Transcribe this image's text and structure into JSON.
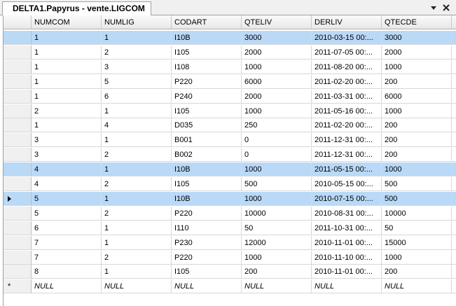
{
  "tab": {
    "title": "DELTA1.Papyrus - vente.LIGCOM"
  },
  "table": {
    "columns": [
      "NUMCOM",
      "NUMLIG",
      "CODART",
      "QTELIV",
      "DERLIV",
      "QTECDE"
    ],
    "rows": [
      {
        "cells": [
          "1",
          "1",
          "I10B",
          "3000",
          "2010-03-15 00:...",
          "3000"
        ],
        "selected": true
      },
      {
        "cells": [
          "1",
          "2",
          "I105",
          "2000",
          "2011-07-05 00:...",
          "2000"
        ]
      },
      {
        "cells": [
          "1",
          "3",
          "I108",
          "1000",
          "2011-08-20 00:...",
          "1000"
        ]
      },
      {
        "cells": [
          "1",
          "5",
          "P220",
          "6000",
          "2011-02-20 00:...",
          "200"
        ]
      },
      {
        "cells": [
          "1",
          "6",
          "P240",
          "2000",
          "2011-03-31 00:...",
          "6000"
        ]
      },
      {
        "cells": [
          "2",
          "1",
          "I105",
          "1000",
          "2011-05-16 00:...",
          "1000"
        ]
      },
      {
        "cells": [
          "1",
          "4",
          "D035",
          "250",
          "2011-02-20 00:...",
          "200"
        ]
      },
      {
        "cells": [
          "3",
          "1",
          "B001",
          "0",
          "2011-12-31 00:...",
          "200"
        ]
      },
      {
        "cells": [
          "3",
          "2",
          "B002",
          "0",
          "2011-12-31 00:...",
          "200"
        ]
      },
      {
        "cells": [
          "4",
          "1",
          "I10B",
          "1000",
          "2011-05-15 00:...",
          "1000"
        ],
        "selected": true
      },
      {
        "cells": [
          "4",
          "2",
          "I105",
          "500",
          "2010-05-15 00:...",
          "500"
        ]
      },
      {
        "cells": [
          "5",
          "1",
          "I10B",
          "1000",
          "2010-07-15 00:...",
          "500"
        ],
        "selected": true,
        "current": true
      },
      {
        "cells": [
          "5",
          "2",
          "P220",
          "10000",
          "2010-08-31 00:...",
          "10000"
        ]
      },
      {
        "cells": [
          "6",
          "1",
          "I110",
          "50",
          "2011-10-31 00:...",
          "50"
        ]
      },
      {
        "cells": [
          "7",
          "1",
          "P230",
          "12000",
          "2010-11-01 00:...",
          "15000"
        ]
      },
      {
        "cells": [
          "7",
          "2",
          "P220",
          "1000",
          "2010-11-10 00:...",
          "1000"
        ]
      },
      {
        "cells": [
          "8",
          "1",
          "I105",
          "200",
          "2010-11-01 00:...",
          "200"
        ]
      }
    ],
    "new_row": {
      "marker": "*",
      "cells": [
        "NULL",
        "NULL",
        "NULL",
        "NULL",
        "NULL",
        "NULL"
      ]
    }
  }
}
